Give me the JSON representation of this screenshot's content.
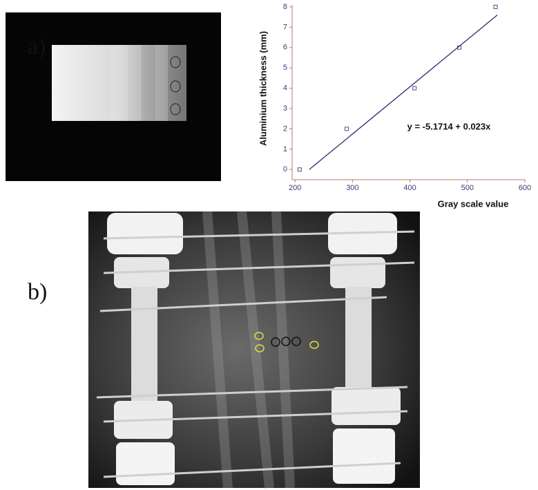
{
  "panel_labels": [
    "a)",
    "b)"
  ],
  "chart_data": {
    "type": "scatter",
    "x_label": "Gray scale value",
    "y_label": "Aluminium thickness (mm)",
    "annotation": "y = -5.1714 + 0.023x",
    "xlim": [
      195,
      600
    ],
    "ylim": [
      -0.5,
      8.1
    ],
    "xticks": [
      200,
      300,
      400,
      500,
      600
    ],
    "yticks": [
      0,
      1,
      2,
      3,
      4,
      5,
      6,
      7,
      8
    ],
    "series": [
      {
        "x": [
          208,
          290,
          408,
          486,
          549
        ],
        "values": [
          0,
          2,
          4,
          6,
          8
        ],
        "color": "#4a4a8a",
        "marker": "square"
      },
      {
        "x": [
          224.8,
          552
        ],
        "values": [
          0,
          7.6
        ],
        "color": "#2a2a70",
        "style": "line"
      }
    ]
  }
}
